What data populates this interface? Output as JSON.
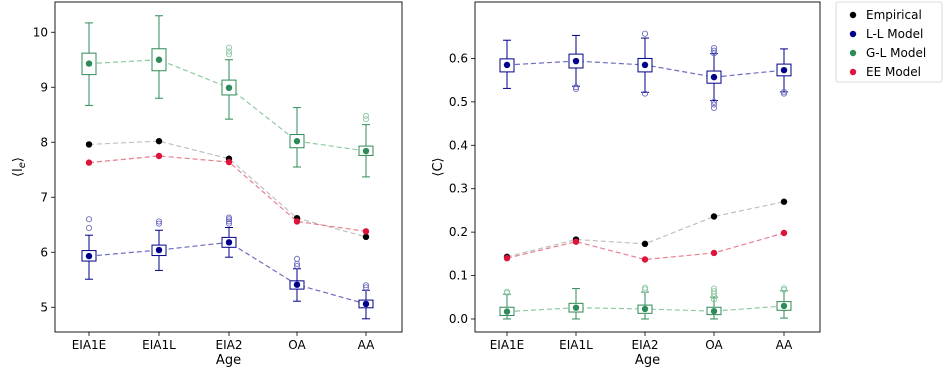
{
  "chart_data": [
    {
      "type": "line",
      "xlabel": "Age",
      "ylabel": "⟨l",
      "ylabel_sub": "e",
      "ylabel_close": "⟩",
      "categories": [
        "EIA1E",
        "EIA1L",
        "EIA2",
        "OA",
        "AA"
      ],
      "ylim": [
        4.55,
        10.55
      ],
      "yticks": [
        "5",
        "6",
        "7",
        "8",
        "9",
        "10"
      ],
      "series": [
        {
          "name": "Empirical",
          "color": "#000000",
          "line_color": "#c0c0c0",
          "values": [
            7.96,
            8.02,
            7.7,
            6.62,
            6.28
          ]
        },
        {
          "name": "L-L Model",
          "color": "#00008b",
          "line_color": "#6e6ec2",
          "values": [
            5.93,
            6.04,
            6.18,
            5.41,
            5.06
          ],
          "box": {
            "q1": [
              5.84,
              5.94,
              6.09,
              5.33,
              4.99
            ],
            "q3": [
              6.03,
              6.13,
              6.27,
              5.48,
              5.13
            ],
            "low": [
              5.51,
              5.67,
              5.91,
              5.11,
              4.79
            ],
            "high": [
              6.31,
              6.4,
              6.45,
              5.7,
              5.31
            ],
            "fliers": [
              [
                6.44,
                6.6
              ],
              [
                6.52,
                6.56
              ],
              [
                6.52,
                6.56,
                6.6,
                6.63
              ],
              [
                5.75,
                5.79,
                5.88
              ],
              [
                5.36,
                5.4
              ]
            ]
          }
        },
        {
          "name": "G-L Model",
          "color": "#2e8b57",
          "line_color": "#8fc9a4",
          "values": [
            9.43,
            9.5,
            8.99,
            8.02,
            7.84
          ],
          "box": {
            "q1": [
              9.23,
              9.3,
              8.86,
              7.9,
              7.76
            ],
            "q3": [
              9.62,
              9.7,
              9.13,
              8.14,
              7.93
            ],
            "low": [
              8.67,
              8.8,
              8.42,
              7.55,
              7.37
            ],
            "high": [
              10.17,
              10.3,
              9.5,
              8.63,
              8.32
            ],
            "fliers": [
              [],
              [],
              [
                9.6,
                9.65,
                9.72
              ],
              [],
              [
                8.42,
                8.48
              ]
            ]
          }
        },
        {
          "name": "EE Model",
          "color": "#dc143c",
          "line_color": "#e8808f",
          "values": [
            7.63,
            7.75,
            7.64,
            6.56,
            6.38
          ]
        }
      ]
    },
    {
      "type": "line",
      "xlabel": "Age",
      "ylabel": "⟨C⟩",
      "categories": [
        "EIA1E",
        "EIA1L",
        "EIA2",
        "OA",
        "AA"
      ],
      "ylim": [
        -0.03,
        0.73
      ],
      "yticks": [
        "0.0",
        "0.1",
        "0.2",
        "0.3",
        "0.4",
        "0.5",
        "0.6"
      ],
      "series": [
        {
          "name": "Empirical",
          "color": "#000000",
          "line_color": "#c0c0c0",
          "values": [
            0.143,
            0.183,
            0.173,
            0.236,
            0.27
          ]
        },
        {
          "name": "L-L Model",
          "color": "#00008b",
          "line_color": "#6e6ec2",
          "values": [
            0.585,
            0.594,
            0.585,
            0.557,
            0.573
          ],
          "box": {
            "q1": [
              0.569,
              0.578,
              0.569,
              0.543,
              0.56
            ],
            "q3": [
              0.599,
              0.61,
              0.6,
              0.571,
              0.587
            ],
            "low": [
              0.531,
              0.536,
              0.522,
              0.503,
              0.523
            ],
            "high": [
              0.642,
              0.653,
              0.647,
              0.611,
              0.622
            ],
            "fliers": [
              [],
              [
                0.53,
                0.534
              ],
              [
                0.519,
                0.657
              ],
              [
                0.486,
                0.494,
                0.5,
                0.612,
                0.618,
                0.624
              ],
              [
                0.519,
                0.523
              ]
            ]
          }
        },
        {
          "name": "G-L Model",
          "color": "#2e8b57",
          "line_color": "#8fc9a4",
          "values": [
            0.017,
            0.026,
            0.023,
            0.018,
            0.03
          ],
          "box": {
            "q1": [
              0.008,
              0.016,
              0.013,
              0.01,
              0.02
            ],
            "q3": [
              0.027,
              0.036,
              0.032,
              0.027,
              0.04
            ],
            "low": [
              0.0,
              0.0,
              0.0,
              0.0,
              0.002
            ],
            "high": [
              0.057,
              0.07,
              0.062,
              0.05,
              0.065
            ],
            "fliers": [
              [
                0.06,
                0.063
              ],
              [],
              [
                0.068,
                0.072
              ],
              [
                0.045,
                0.052,
                0.058,
                0.064,
                0.07
              ],
              [
                0.067,
                0.071
              ]
            ]
          }
        },
        {
          "name": "EE Model",
          "color": "#dc143c",
          "line_color": "#e8808f",
          "values": [
            0.14,
            0.178,
            0.137,
            0.152,
            0.198
          ]
        }
      ]
    }
  ],
  "legend": {
    "placement": "upper-right-outside",
    "entries": [
      {
        "label": "Empirical",
        "color": "#000000"
      },
      {
        "label": "L-L Model",
        "color": "#00008b"
      },
      {
        "label": "G-L Model",
        "color": "#2e8b57"
      },
      {
        "label": "EE Model",
        "color": "#dc143c"
      }
    ]
  }
}
